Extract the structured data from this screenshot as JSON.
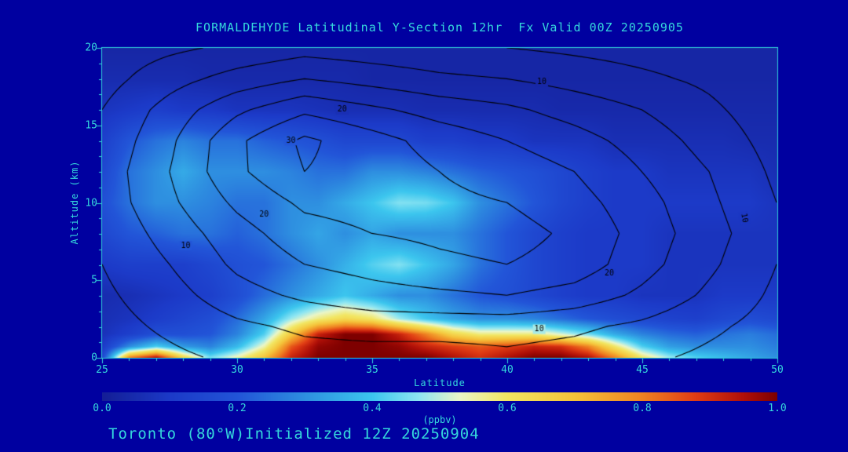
{
  "colors": {
    "background": "#0000A0",
    "text": "#35D8DC",
    "contour": "#000000"
  },
  "chart": {
    "title": "FORMALDEHYDE Latitudinal Y-Section 12hr  Fx Valid 00Z 20250905",
    "xlabel": "Latitude",
    "ylabel": "Altitude (km)",
    "colorbar_label": "(ppbv)",
    "footer": "Toronto (80°W)Initialized 12Z 20250904"
  },
  "chart_data": {
    "type": "heatmap",
    "title": "FORMALDEHYDE Latitudinal Y-Section 12hr  Fx Valid 00Z 20250905",
    "xlabel": "Latitude",
    "ylabel": "Altitude (km)",
    "unit": "ppbv",
    "xlim": [
      25,
      50
    ],
    "ylim": [
      0,
      20
    ],
    "clim": [
      0,
      1
    ],
    "x_ticks": [
      25,
      30,
      35,
      40,
      45,
      50
    ],
    "y_ticks": [
      0,
      5,
      10,
      15,
      20
    ],
    "colorbar_ticks": [
      "0.0",
      "0.2",
      "0.4",
      "0.6",
      "0.8",
      "1.0"
    ],
    "lat": [
      25,
      26,
      27,
      28,
      29,
      30,
      31,
      32,
      33,
      34,
      35,
      36,
      37,
      38,
      39,
      40,
      41,
      42,
      43,
      44,
      45,
      46,
      47,
      48,
      49,
      50
    ],
    "alt": [
      0,
      0.7,
      1.5,
      2.5,
      4,
      6,
      8,
      10,
      12,
      14,
      16,
      18,
      20
    ],
    "values": [
      [
        0.15,
        0.8,
        0.95,
        0.65,
        0.45,
        0.55,
        0.7,
        0.92,
        1.0,
        1.0,
        1.0,
        1.0,
        1.0,
        0.95,
        0.9,
        0.95,
        1.0,
        1.0,
        0.95,
        0.8,
        0.6,
        0.48,
        0.42,
        0.38,
        0.34,
        0.3
      ],
      [
        0.1,
        0.3,
        0.42,
        0.32,
        0.28,
        0.38,
        0.55,
        0.85,
        0.98,
        1.0,
        1.0,
        0.98,
        0.92,
        0.88,
        0.85,
        0.88,
        0.92,
        0.9,
        0.8,
        0.6,
        0.42,
        0.33,
        0.3,
        0.3,
        0.3,
        0.27
      ],
      [
        0.07,
        0.12,
        0.18,
        0.18,
        0.2,
        0.28,
        0.42,
        0.68,
        0.92,
        1.0,
        1.0,
        0.92,
        0.8,
        0.65,
        0.58,
        0.58,
        0.58,
        0.52,
        0.45,
        0.35,
        0.28,
        0.24,
        0.22,
        0.25,
        0.27,
        0.24
      ],
      [
        0.06,
        0.08,
        0.11,
        0.14,
        0.17,
        0.24,
        0.34,
        0.48,
        0.58,
        0.64,
        0.6,
        0.48,
        0.4,
        0.34,
        0.3,
        0.3,
        0.28,
        0.24,
        0.2,
        0.17,
        0.15,
        0.13,
        0.12,
        0.15,
        0.17,
        0.15
      ],
      [
        0.05,
        0.06,
        0.08,
        0.1,
        0.12,
        0.17,
        0.24,
        0.3,
        0.35,
        0.4,
        0.35,
        0.3,
        0.3,
        0.25,
        0.2,
        0.18,
        0.15,
        0.12,
        0.1,
        0.1,
        0.08,
        0.08,
        0.08,
        0.1,
        0.1,
        0.1
      ],
      [
        0.1,
        0.12,
        0.12,
        0.12,
        0.15,
        0.18,
        0.2,
        0.25,
        0.3,
        0.36,
        0.42,
        0.46,
        0.4,
        0.34,
        0.25,
        0.2,
        0.15,
        0.12,
        0.1,
        0.1,
        0.1,
        0.08,
        0.08,
        0.08,
        0.08,
        0.08
      ],
      [
        0.15,
        0.2,
        0.22,
        0.25,
        0.25,
        0.22,
        0.25,
        0.3,
        0.34,
        0.3,
        0.34,
        0.3,
        0.3,
        0.3,
        0.25,
        0.2,
        0.15,
        0.12,
        0.1,
        0.1,
        0.1,
        0.08,
        0.08,
        0.08,
        0.08,
        0.08
      ],
      [
        0.18,
        0.25,
        0.3,
        0.3,
        0.28,
        0.25,
        0.25,
        0.3,
        0.3,
        0.35,
        0.4,
        0.46,
        0.45,
        0.4,
        0.3,
        0.25,
        0.2,
        0.15,
        0.12,
        0.1,
        0.1,
        0.1,
        0.1,
        0.1,
        0.1,
        0.08
      ],
      [
        0.15,
        0.25,
        0.3,
        0.35,
        0.3,
        0.3,
        0.3,
        0.28,
        0.25,
        0.25,
        0.3,
        0.3,
        0.28,
        0.25,
        0.22,
        0.2,
        0.18,
        0.15,
        0.12,
        0.1,
        0.1,
        0.08,
        0.08,
        0.08,
        0.08,
        0.06
      ],
      [
        0.12,
        0.2,
        0.25,
        0.28,
        0.25,
        0.25,
        0.22,
        0.2,
        0.18,
        0.15,
        0.15,
        0.15,
        0.12,
        0.12,
        0.1,
        0.1,
        0.08,
        0.08,
        0.08,
        0.06,
        0.06,
        0.06,
        0.06,
        0.06,
        0.05,
        0.05
      ],
      [
        0.08,
        0.1,
        0.12,
        0.1,
        0.1,
        0.08,
        0.08,
        0.08,
        0.07,
        0.06,
        0.06,
        0.06,
        0.05,
        0.05,
        0.05,
        0.05,
        0.05,
        0.04,
        0.04,
        0.04,
        0.04,
        0.04,
        0.04,
        0.04,
        0.04,
        0.04
      ],
      [
        0.05,
        0.05,
        0.05,
        0.05,
        0.04,
        0.04,
        0.04,
        0.04,
        0.04,
        0.04,
        0.03,
        0.03,
        0.03,
        0.03,
        0.03,
        0.03,
        0.03,
        0.03,
        0.03,
        0.03,
        0.03,
        0.03,
        0.03,
        0.03,
        0.03,
        0.03
      ],
      [
        0.03,
        0.03,
        0.03,
        0.03,
        0.03,
        0.03,
        0.03,
        0.03,
        0.03,
        0.03,
        0.03,
        0.03,
        0.03,
        0.03,
        0.03,
        0.03,
        0.03,
        0.03,
        0.03,
        0.03,
        0.03,
        0.03,
        0.03,
        0.03,
        0.03,
        0.03
      ]
    ],
    "colormap": [
      [
        0.0,
        "#141E96"
      ],
      [
        0.1,
        "#1C3AC8"
      ],
      [
        0.2,
        "#2255D8"
      ],
      [
        0.3,
        "#2E8FE0"
      ],
      [
        0.4,
        "#3CC6EE"
      ],
      [
        0.47,
        "#8FE6F2"
      ],
      [
        0.53,
        "#EAF6C8"
      ],
      [
        0.6,
        "#F2E662"
      ],
      [
        0.7,
        "#F5C33A"
      ],
      [
        0.8,
        "#EF8322"
      ],
      [
        0.88,
        "#E03C14"
      ],
      [
        0.95,
        "#B01008"
      ],
      [
        1.0,
        "#7E0000"
      ]
    ],
    "contour_overlay": {
      "levels": [
        5,
        10,
        15,
        20,
        25,
        30
      ],
      "lat": [
        25,
        27.5,
        30,
        32.5,
        35,
        37.5,
        40,
        42.5,
        45,
        47.5,
        50
      ],
      "alt": [
        0,
        2,
        4,
        6,
        8,
        10,
        12,
        14,
        16,
        18,
        20
      ],
      "values": [
        [
          2,
          4,
          6,
          8,
          8,
          8,
          9,
          8,
          6,
          4,
          2
        ],
        [
          3,
          6,
          9,
          11,
          12,
          12,
          12,
          11,
          9,
          6,
          3
        ],
        [
          4,
          8,
          13,
          16,
          18,
          19,
          20,
          18,
          14,
          9,
          4
        ],
        [
          5,
          10,
          16,
          20,
          22,
          24,
          25,
          23,
          17,
          11,
          5
        ],
        [
          6,
          12,
          18,
          23,
          25,
          26,
          27,
          24,
          18,
          12,
          6
        ],
        [
          7,
          14,
          21,
          26,
          27,
          26,
          25,
          22,
          17,
          11,
          5
        ],
        [
          7,
          15,
          24,
          30,
          28,
          25,
          23,
          20,
          15,
          10,
          4
        ],
        [
          6,
          14,
          24,
          31,
          27,
          23,
          20,
          17,
          13,
          8,
          3
        ],
        [
          5,
          12,
          19,
          24,
          21,
          18,
          16,
          13,
          10,
          6,
          2
        ],
        [
          3,
          8,
          12,
          15,
          13,
          11,
          10,
          8,
          6,
          4,
          1
        ],
        [
          2,
          4,
          6,
          8,
          7,
          6,
          5,
          4,
          3,
          2,
          1
        ]
      ],
      "labels": [
        {
          "text": "10",
          "lat": 28.1,
          "alt": 7.2
        },
        {
          "text": "20",
          "lat": 31.0,
          "alt": 9.2
        },
        {
          "text": "30",
          "lat": 32.0,
          "alt": 14.0
        },
        {
          "text": "20",
          "lat": 33.9,
          "alt": 16.0
        },
        {
          "text": "10",
          "lat": 41.3,
          "alt": 17.8
        },
        {
          "text": "20",
          "lat": 43.8,
          "alt": 5.4
        },
        {
          "text": "10",
          "lat": 41.2,
          "alt": 1.8
        },
        {
          "text": "10",
          "lat": 48.8,
          "alt": 9.0,
          "rot": 80
        }
      ]
    }
  }
}
